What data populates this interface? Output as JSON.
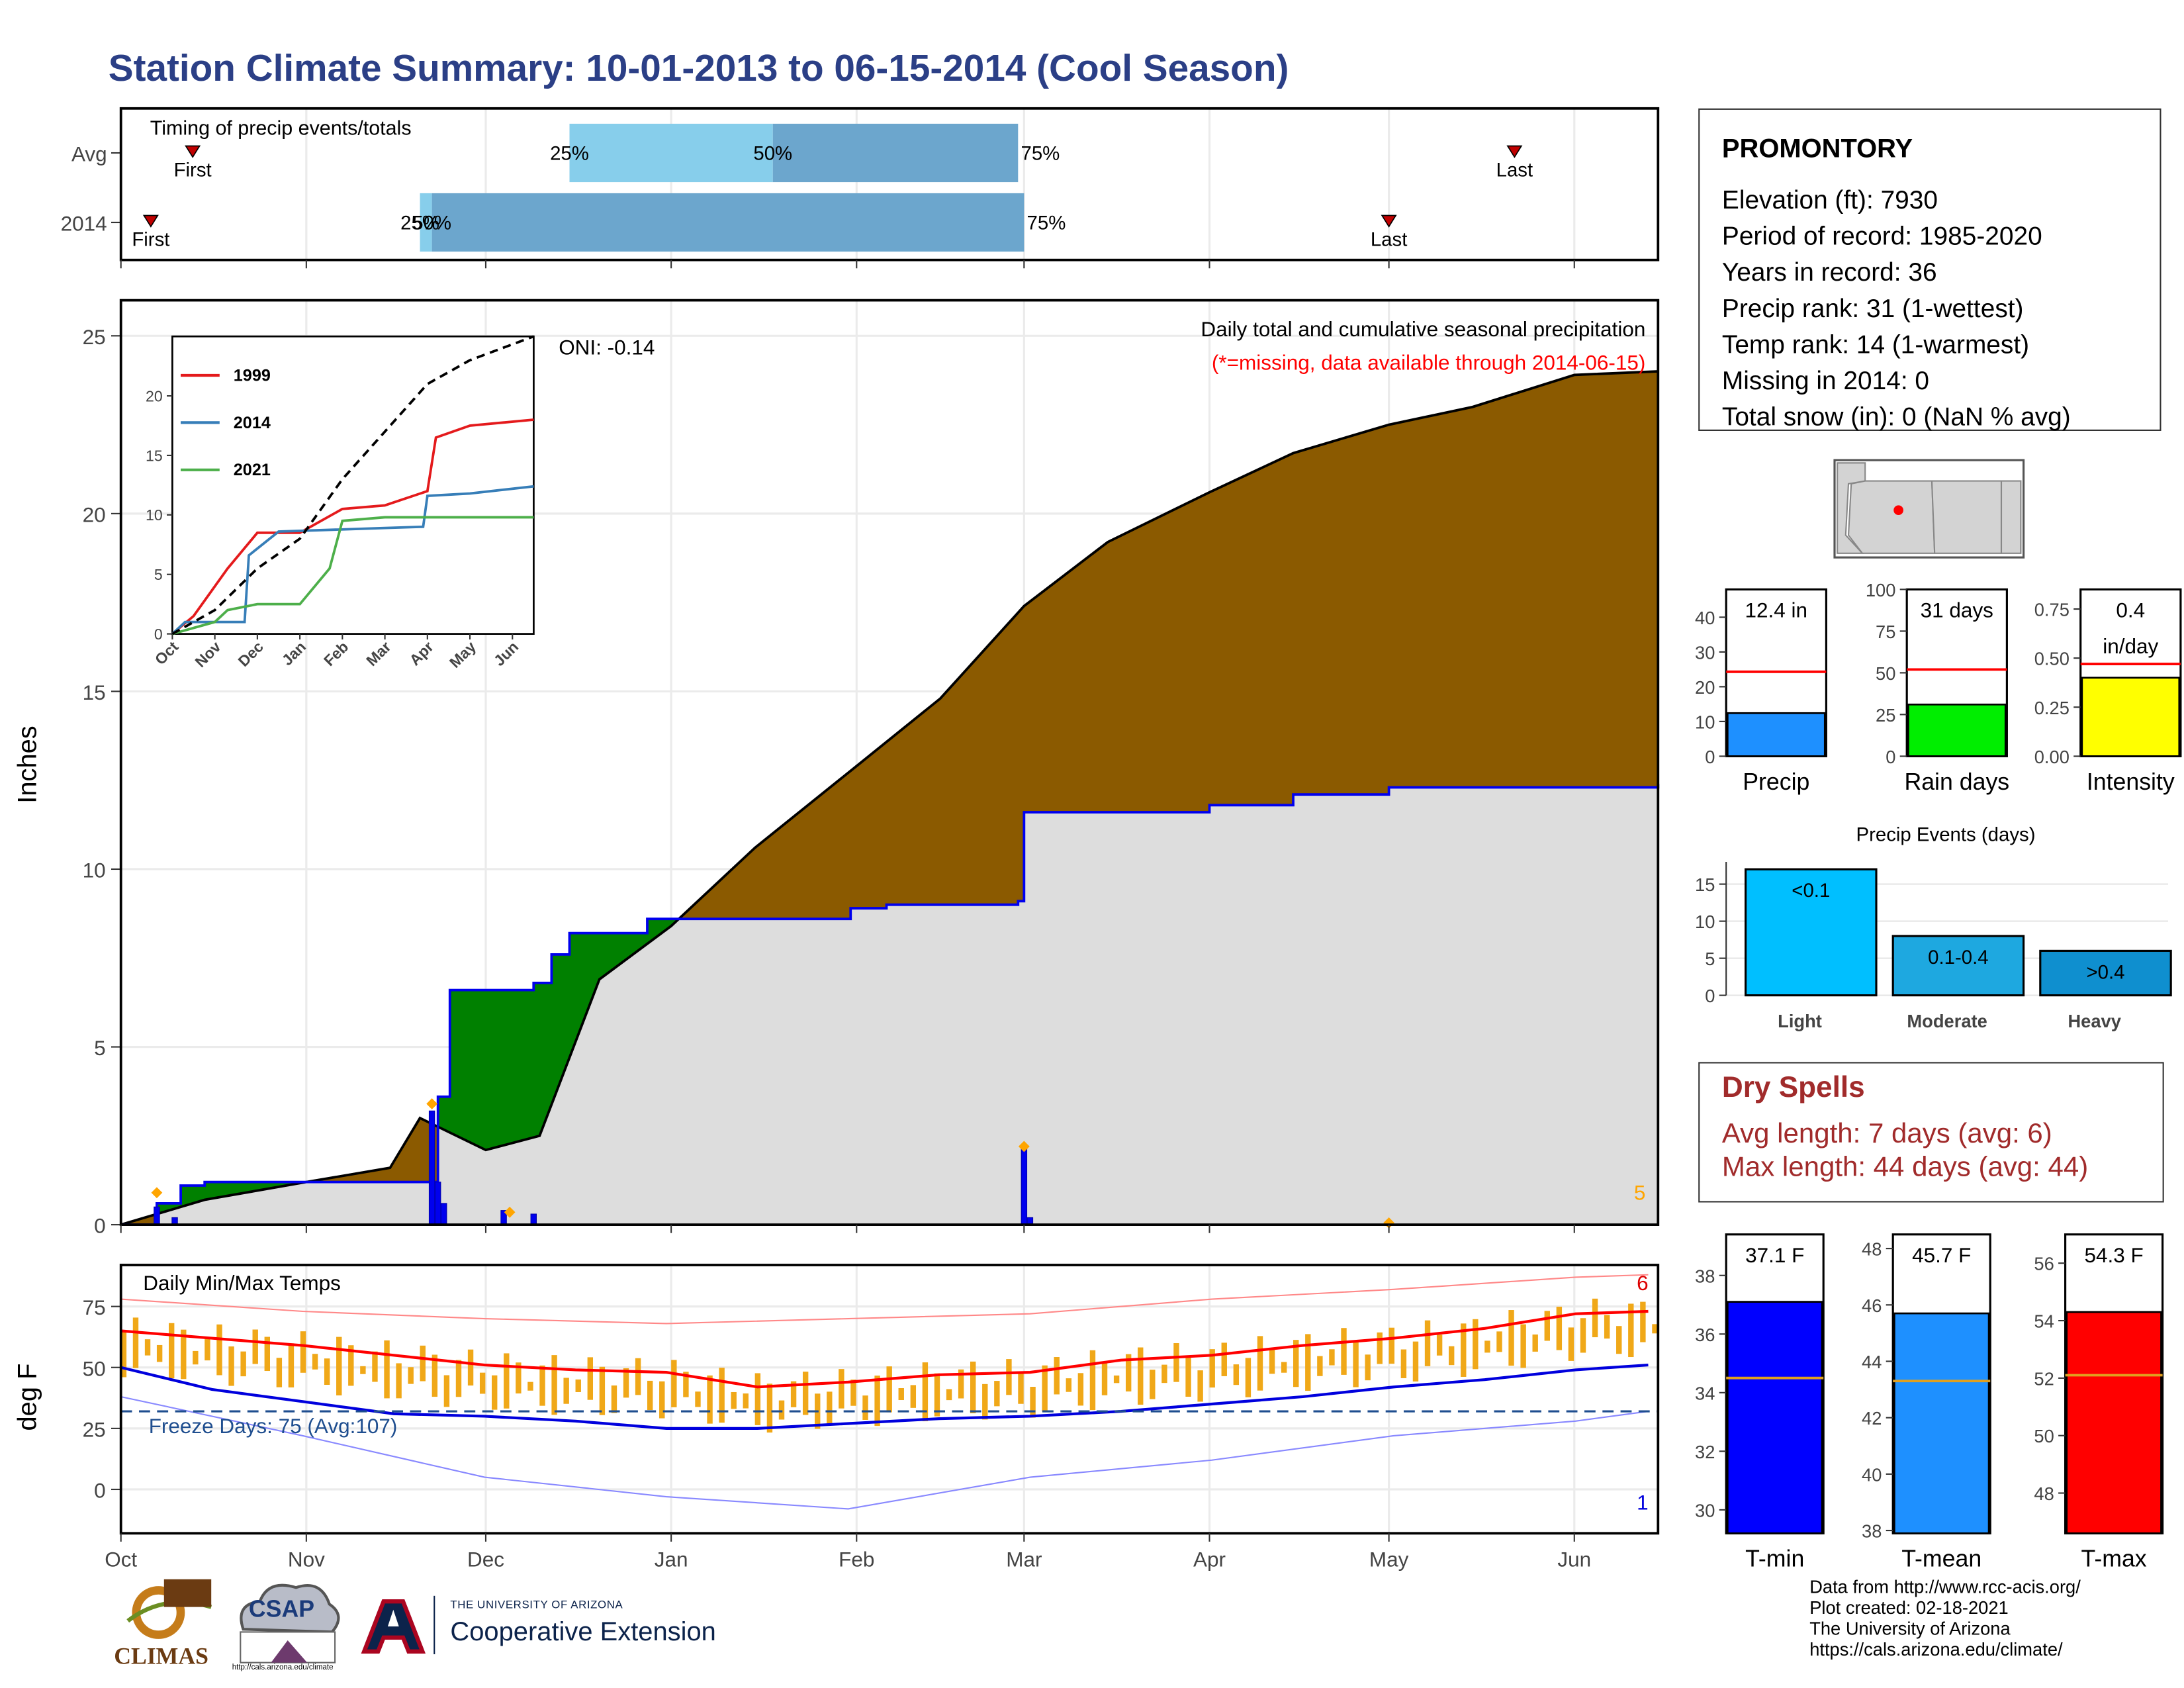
{
  "title": "Station Climate Summary: 10-01-2013 to 06-15-2014 (Cool Season)",
  "station": {
    "name": "PROMONTORY",
    "lines": [
      "Elevation (ft): 7930",
      "Period of record: 1985-2020",
      "Years in record: 36",
      "Precip rank: 31 (1-wettest)",
      "Temp rank: 14 (1-warmest)",
      "Missing in 2014: 0",
      "Total snow (in): 0 (NaN % avg)"
    ]
  },
  "dry_spells": {
    "title": "Dry Spells",
    "avg": "Avg length: 7 days (avg: 6)",
    "max": "Max length: 44 days (avg: 44)"
  },
  "credits": [
    "Data from http://www.rcc-acis.org/",
    "Plot created: 02-18-2021",
    "The University of Arizona",
    "https://cals.arizona.edu/climate/"
  ],
  "logos": {
    "climas": "CLIMAS",
    "csap": "CSAP",
    "csap_url": "http://cals.arizona.edu/climate",
    "ua_top": "THE UNIVERSITY OF ARIZONA",
    "ua_bottom": "Cooperative Extension"
  },
  "colors": {
    "title": "#2b3f86",
    "cumulative_avg_fill": "#8b5a00",
    "wetter_fill": "#008000",
    "current_fill": "#dddddd",
    "current_line": "#0000ee",
    "tmax": "#ff0000",
    "tmin": "#0000dd",
    "bars": "#f0a818",
    "dry_spell_text": "#a12b2b"
  },
  "chart_data": [
    {
      "id": "timing",
      "type": "bar",
      "title": "Timing of precip events/totals",
      "rows": [
        "Avg",
        "2014"
      ],
      "avg": {
        "first": "Oct 13",
        "p25": "Dec 15",
        "p50": "Jan 18",
        "p75": "Feb 28",
        "last": "May 22"
      },
      "y2014": {
        "first": "Oct 06",
        "p25": "Nov 20",
        "p50": "Nov 22",
        "p75": "Mar 01",
        "last": "May 01"
      },
      "tick_labels": {
        "p25": "25%",
        "p50": "50%",
        "p75": "75%",
        "first": "First",
        "last": "Last"
      }
    },
    {
      "id": "precip",
      "type": "area",
      "title": "Daily total and cumulative seasonal precipitation",
      "subtitle": "(*=missing, data available through 2014-06-15)",
      "oni": "ONI: -0.14",
      "ylabel": "Inches",
      "ylim": [
        0,
        26
      ],
      "yticks": [
        0,
        5,
        10,
        15,
        20,
        25
      ],
      "x": [
        "Oct",
        "Nov",
        "Dec",
        "Jan",
        "Feb",
        "Mar",
        "Apr",
        "May",
        "Jun"
      ],
      "corner_label": "5",
      "avg_cumulative": [
        [
          "2013-10-01",
          0
        ],
        [
          "2013-10-15",
          0.7
        ],
        [
          "2013-11-01",
          1.2
        ],
        [
          "2013-11-15",
          1.6
        ],
        [
          "2013-12-01",
          2.1
        ],
        [
          "2013-12-10",
          2.5
        ],
        [
          "2013-11-20",
          3.0
        ],
        [
          "2013-12-20",
          6.9
        ],
        [
          "2014-01-01",
          8.4
        ],
        [
          "2014-01-15",
          10.6
        ],
        [
          "2014-02-01",
          12.9
        ],
        [
          "2014-02-15",
          14.8
        ],
        [
          "2014-03-01",
          17.4
        ],
        [
          "2014-03-15",
          19.2
        ],
        [
          "2014-04-01",
          20.6
        ],
        [
          "2014-04-15",
          21.7
        ],
        [
          "2014-05-01",
          22.5
        ],
        [
          "2014-05-15",
          23.0
        ],
        [
          "2014-06-01",
          23.9
        ],
        [
          "2014-06-15",
          24.0
        ]
      ],
      "current_cumulative": [
        [
          "2013-10-01",
          0
        ],
        [
          "2013-10-07",
          0.6
        ],
        [
          "2013-10-11",
          1.1
        ],
        [
          "2013-10-15",
          1.2
        ],
        [
          "2013-11-22",
          1.2
        ],
        [
          "2013-11-23",
          3.6
        ],
        [
          "2013-11-25",
          6.6
        ],
        [
          "2013-12-09",
          6.8
        ],
        [
          "2013-12-12",
          7.6
        ],
        [
          "2013-12-15",
          8.2
        ],
        [
          "2013-12-28",
          8.6
        ],
        [
          "2014-01-01",
          8.6
        ],
        [
          "2014-01-31",
          8.9
        ],
        [
          "2014-02-06",
          9.0
        ],
        [
          "2014-02-28",
          9.1
        ],
        [
          "2014-03-01",
          11.6
        ],
        [
          "2014-04-01",
          11.8
        ],
        [
          "2014-04-15",
          12.1
        ],
        [
          "2014-05-01",
          12.3
        ],
        [
          "2014-06-15",
          12.4
        ]
      ],
      "daily_spikes": [
        [
          "2013-10-07",
          0.5
        ],
        [
          "2013-10-10",
          0.2
        ],
        [
          "2013-11-22",
          3.2
        ],
        [
          "2013-11-23",
          1.2
        ],
        [
          "2013-11-24",
          0.6
        ],
        [
          "2013-12-04",
          0.4
        ],
        [
          "2013-12-09",
          0.3
        ],
        [
          "2014-03-01",
          2.2
        ],
        [
          "2014-03-02",
          0.2
        ]
      ],
      "inset": {
        "type": "line",
        "ylim": [
          0,
          25
        ],
        "yticks": [
          0,
          5,
          10,
          15,
          20
        ],
        "x": [
          "Oct",
          "Nov",
          "Dec",
          "Jan",
          "Feb",
          "Mar",
          "Apr",
          "May",
          "Jun"
        ],
        "series": [
          {
            "name": "1999",
            "color": "#e41a1c",
            "values": [
              [
                0,
                0
              ],
              [
                0.5,
                1.5
              ],
              [
                1,
                4
              ],
              [
                1.3,
                5.5
              ],
              [
                2,
                8.5
              ],
              [
                3,
                8.5
              ],
              [
                4,
                10.5
              ],
              [
                5,
                10.8
              ],
              [
                6,
                12
              ],
              [
                6.2,
                16.5
              ],
              [
                7,
                17.5
              ],
              [
                8.5,
                18
              ]
            ]
          },
          {
            "name": "2014",
            "color": "#377eb8",
            "values": [
              [
                0,
                0
              ],
              [
                0.3,
                1
              ],
              [
                1.7,
                1
              ],
              [
                1.8,
                6.6
              ],
              [
                2.5,
                8.6
              ],
              [
                5,
                8.9
              ],
              [
                5.9,
                9
              ],
              [
                6,
                11.6
              ],
              [
                7,
                11.8
              ],
              [
                8.5,
                12.4
              ]
            ]
          },
          {
            "name": "2021",
            "color": "#4daf4a",
            "values": [
              [
                0,
                0
              ],
              [
                1,
                1
              ],
              [
                1.3,
                2
              ],
              [
                2,
                2.5
              ],
              [
                3,
                2.5
              ],
              [
                3.7,
                5.5
              ],
              [
                4,
                9.5
              ],
              [
                5,
                9.8
              ],
              [
                8.5,
                9.8
              ]
            ]
          },
          {
            "name": "",
            "color": "#000000",
            "values": [
              [
                0,
                0
              ],
              [
                1,
                2
              ],
              [
                2,
                5.5
              ],
              [
                3,
                8
              ],
              [
                4,
                13
              ],
              [
                5,
                17
              ],
              [
                6,
                21
              ],
              [
                7,
                23
              ],
              [
                8.5,
                25
              ]
            ]
          }
        ]
      }
    },
    {
      "id": "temps",
      "type": "line",
      "title": "Daily Min/Max Temps",
      "ylabel": "deg F",
      "yticks": [
        0,
        25,
        50,
        75
      ],
      "ylim": [
        -18,
        92
      ],
      "x": [
        "Oct",
        "Nov",
        "Dec",
        "Jan",
        "Feb",
        "Mar",
        "Apr",
        "May",
        "Jun"
      ],
      "freeze": "Freeze Days: 75 (Avg:107)",
      "freeze_line": 32,
      "corner_top": "6",
      "corner_bottom": "1",
      "avg_tmax": [
        [
          0,
          65
        ],
        [
          0.5,
          62
        ],
        [
          1,
          59
        ],
        [
          1.5,
          55
        ],
        [
          2,
          51
        ],
        [
          2.5,
          49
        ],
        [
          3,
          48
        ],
        [
          3.5,
          42
        ],
        [
          4,
          44
        ],
        [
          4.5,
          47
        ],
        [
          5,
          48
        ],
        [
          5.5,
          53
        ],
        [
          6,
          55
        ],
        [
          6.5,
          59
        ],
        [
          7,
          62
        ],
        [
          7.5,
          66
        ],
        [
          8,
          72
        ],
        [
          8.4,
          73
        ]
      ],
      "avg_tmin": [
        [
          0,
          50
        ],
        [
          0.5,
          41
        ],
        [
          1,
          36
        ],
        [
          1.5,
          31
        ],
        [
          2,
          30
        ],
        [
          2.5,
          28
        ],
        [
          3,
          25
        ],
        [
          3.5,
          25
        ],
        [
          4,
          27
        ],
        [
          4.5,
          29
        ],
        [
          5,
          30
        ],
        [
          5.5,
          32
        ],
        [
          6,
          35
        ],
        [
          6.5,
          38
        ],
        [
          7,
          42
        ],
        [
          7.5,
          45
        ],
        [
          8,
          49
        ],
        [
          8.4,
          51
        ]
      ],
      "record_max_band": [
        [
          0,
          78
        ],
        [
          1,
          73
        ],
        [
          2,
          70
        ],
        [
          3,
          68
        ],
        [
          4,
          70
        ],
        [
          5,
          72
        ],
        [
          6,
          78
        ],
        [
          7,
          82
        ],
        [
          8,
          87
        ],
        [
          8.4,
          88
        ]
      ],
      "record_min_band": [
        [
          0,
          38
        ],
        [
          1,
          22
        ],
        [
          2,
          5
        ],
        [
          3,
          -3
        ],
        [
          4,
          -8
        ],
        [
          5,
          5
        ],
        [
          6,
          12
        ],
        [
          7,
          22
        ],
        [
          8,
          28
        ],
        [
          8.4,
          32
        ]
      ]
    },
    {
      "id": "gauges",
      "type": "bar",
      "items": [
        {
          "label": "Precip",
          "value": 12.4,
          "avg": 24.3,
          "text": "12.4 in",
          "ylim": [
            0,
            48
          ],
          "yticks": [
            0,
            10,
            20,
            30,
            40
          ],
          "color": "#1e90ff"
        },
        {
          "label": "Rain days",
          "value": 31,
          "avg": 52,
          "text": "31 days",
          "ylim": [
            0,
            100
          ],
          "yticks": [
            0,
            25,
            50,
            75,
            100
          ],
          "color": "#00ee00"
        },
        {
          "label": "Intensity",
          "value": 0.4,
          "avg": 0.47,
          "text": "0.4",
          "text2": "in/day",
          "ylim": [
            0,
            0.85
          ],
          "yticks": [
            "0.00",
            "0.25",
            "0.50",
            "0.75"
          ],
          "color": "#ffff00"
        }
      ]
    },
    {
      "id": "events",
      "type": "bar",
      "title": "Precip Events (days)",
      "categories": [
        "Light",
        "Moderate",
        "Heavy"
      ],
      "bar_labels": [
        "<0.1",
        "0.1-0.4",
        ">0.4"
      ],
      "values": [
        17,
        8,
        6
      ],
      "ylim": [
        0,
        18
      ],
      "yticks": [
        0,
        5,
        10,
        15
      ],
      "colors": [
        "#00bfff",
        "#1ea8e0",
        "#0f8fcf"
      ]
    },
    {
      "id": "tgauges",
      "type": "bar",
      "items": [
        {
          "label": "T-min",
          "value": 37.1,
          "avg": 34.5,
          "text": "37.1 F",
          "ylim": [
            29.2,
            39.4
          ],
          "yticks": [
            30,
            32,
            34,
            36,
            38
          ],
          "color": "#0000ff"
        },
        {
          "label": "T-mean",
          "value": 45.7,
          "avg": 43.3,
          "text": "45.7 F",
          "ylim": [
            37.9,
            48.5
          ],
          "yticks": [
            38,
            40,
            42,
            44,
            46,
            48
          ],
          "color": "#1e90ff"
        },
        {
          "label": "T-max",
          "value": 54.3,
          "avg": 52.1,
          "text": "54.3 F",
          "ylim": [
            46.6,
            57
          ],
          "yticks": [
            48,
            50,
            52,
            54,
            56
          ],
          "color": "#ff0000"
        }
      ]
    }
  ]
}
